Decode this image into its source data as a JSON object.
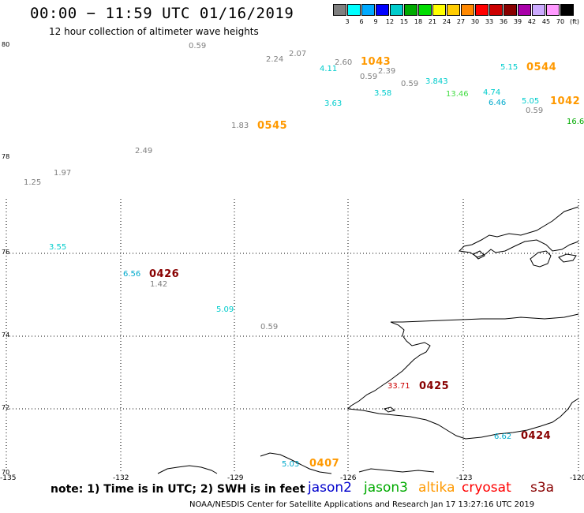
{
  "title": "00:00 − 11:59 UTC 01/16/2019",
  "subtitle": "12 hour collection of altimeter wave heights",
  "scale": {
    "colors": [
      "#7f7f7f",
      "#00ffff",
      "#00aaff",
      "#0000ff",
      "#00cccc",
      "#00aa00",
      "#00dd00",
      "#ffff00",
      "#ffcc00",
      "#ff8800",
      "#ff0000",
      "#cc0000",
      "#880000",
      "#aa00aa",
      "#ccaaff",
      "#ff99ff",
      "#000000"
    ],
    "labels": [
      "3",
      "6",
      "9",
      "12",
      "15",
      "18",
      "21",
      "24",
      "27",
      "30",
      "33",
      "36",
      "39",
      "42",
      "45",
      "70",
      "(ft)"
    ]
  },
  "lat_labels": [
    "80",
    "78",
    "76",
    "74",
    "72",
    "70"
  ],
  "lon_labels": [
    "-135",
    "-132",
    "-129",
    "-126",
    "-123",
    "-120"
  ],
  "wave_values": [
    {
      "v": "0.59",
      "c": "#7f7f7f"
    },
    {
      "v": "2.24",
      "c": "#7f7f7f"
    },
    {
      "v": "2.07",
      "c": "#7f7f7f"
    },
    {
      "v": "4.11",
      "c": "#00cccc"
    },
    {
      "v": "2.60",
      "c": "#7f7f7f"
    },
    {
      "v": "0.59",
      "c": "#7f7f7f"
    },
    {
      "v": "2.39",
      "c": "#7f7f7f"
    },
    {
      "v": "0.59",
      "c": "#7f7f7f"
    },
    {
      "v": "3.58",
      "c": "#00cccc"
    },
    {
      "v": "3.63",
      "c": "#00cccc"
    },
    {
      "v": "3.843",
      "c": "#00cccc"
    },
    {
      "v": "13.46",
      "c": "#44dd44"
    },
    {
      "v": "5.15",
      "c": "#00cccc"
    },
    {
      "v": "4.74",
      "c": "#00cccc"
    },
    {
      "v": "6.46",
      "c": "#00aacc"
    },
    {
      "v": "5.05",
      "c": "#00cccc"
    },
    {
      "v": "0.59",
      "c": "#7f7f7f"
    },
    {
      "v": "16.6",
      "c": "#00aa00"
    },
    {
      "v": "1.83",
      "c": "#7f7f7f"
    },
    {
      "v": "2.49",
      "c": "#7f7f7f"
    },
    {
      "v": "1.97",
      "c": "#7f7f7f"
    },
    {
      "v": "1.25",
      "c": "#7f7f7f"
    },
    {
      "v": "3.55",
      "c": "#00cccc"
    },
    {
      "v": "6.56",
      "c": "#00aacc"
    },
    {
      "v": "1.42",
      "c": "#7f7f7f"
    },
    {
      "v": "5.09",
      "c": "#00cccc"
    },
    {
      "v": "0.59",
      "c": "#7f7f7f"
    },
    {
      "v": "33.71",
      "c": "#cc0000"
    },
    {
      "v": "6.62",
      "c": "#00aacc"
    },
    {
      "v": "5.03",
      "c": "#00aacc"
    }
  ],
  "time_labels": [
    {
      "t": "1043",
      "c": "#ff9900"
    },
    {
      "t": "0544",
      "c": "#ff9900"
    },
    {
      "t": "1042",
      "c": "#ff9900"
    },
    {
      "t": "0545",
      "c": "#ff9900"
    },
    {
      "t": "0426",
      "c": "#880000"
    },
    {
      "t": "0425",
      "c": "#880000"
    },
    {
      "t": "0424",
      "c": "#880000"
    },
    {
      "t": "0407",
      "c": "#ff9900"
    }
  ],
  "note": "note: 1) Time is in UTC; 2) SWH is in feet",
  "legend": [
    {
      "name": "jason2",
      "color": "#0000cc"
    },
    {
      "name": "jason3",
      "color": "#00aa00"
    },
    {
      "name": "altika",
      "color": "#ff9900"
    },
    {
      "name": "cryosat",
      "color": "#ff0000"
    },
    {
      "name": "s3a",
      "color": "#880000"
    }
  ],
  "credit": "NOAA/NESDIS Center for Satellite Applications and Research    Jan 17 13:27:16 UTC 2019"
}
